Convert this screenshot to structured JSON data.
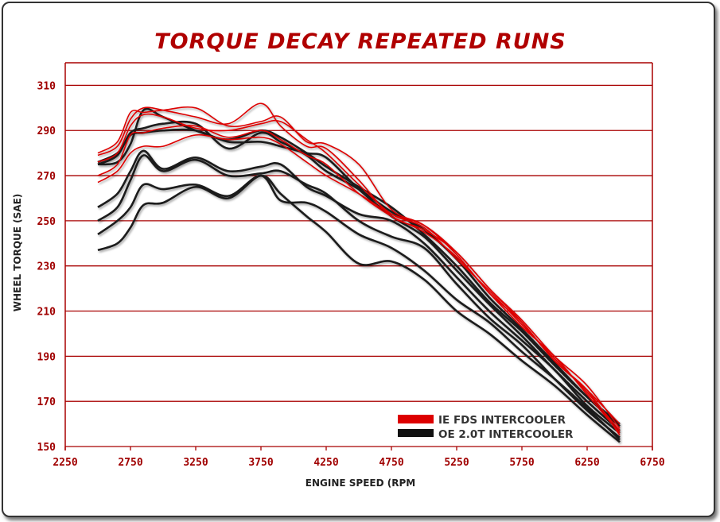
{
  "chart_data": {
    "type": "line",
    "title": "TORQUE DECAY REPEATED RUNS",
    "xlabel": "ENGINE SPEED (RPM",
    "ylabel": "WHEEL TORQUE (SAE)",
    "xlim": [
      2250,
      6750
    ],
    "ylim": [
      150,
      320
    ],
    "xticks": [
      2250,
      2750,
      3250,
      3750,
      4250,
      4750,
      5250,
      5750,
      6250,
      6750
    ],
    "yticks": [
      150,
      170,
      190,
      210,
      230,
      250,
      270,
      290,
      310
    ],
    "grid": "horizontal",
    "legend_position": "bottom-right",
    "legend": [
      {
        "label": "IE FDS INTERCOOLER",
        "color": "#dd0000"
      },
      {
        "label": "OE 2.0T INTERCOOLER",
        "color": "#111111"
      }
    ],
    "x": [
      2500,
      2650,
      2750,
      2850,
      3000,
      3250,
      3500,
      3750,
      3900,
      4100,
      4250,
      4500,
      4750,
      5000,
      5250,
      5500,
      5750,
      6000,
      6250,
      6500
    ],
    "series": [
      {
        "name": "IE FDS INTERCOOLER run 1",
        "group": 0,
        "values": [
          280,
          285,
          298,
          298,
          299,
          300,
          292,
          294,
          296,
          285,
          284,
          275,
          255,
          248,
          235,
          218,
          205,
          188,
          175,
          160
        ]
      },
      {
        "name": "IE FDS INTERCOOLER run 2",
        "group": 0,
        "values": [
          279,
          283,
          295,
          300,
          299,
          296,
          293,
          302,
          292,
          283,
          282,
          268,
          252,
          246,
          236,
          220,
          206,
          190,
          177,
          158
        ]
      },
      {
        "name": "IE FDS INTERCOOLER run 3",
        "group": 0,
        "values": [
          276,
          280,
          292,
          297,
          296,
          291,
          290,
          293,
          294,
          286,
          280,
          266,
          253,
          247,
          233,
          219,
          204,
          189,
          174,
          157
        ]
      },
      {
        "name": "IE FDS INTERCOOLER run 4",
        "group": 0,
        "values": [
          270,
          275,
          288,
          289,
          291,
          292,
          287,
          290,
          286,
          279,
          275,
          262,
          252,
          245,
          234,
          218,
          203,
          190,
          173,
          156
        ]
      },
      {
        "name": "IE FDS INTERCOOLER run 5",
        "group": 0,
        "values": [
          267,
          272,
          280,
          283,
          283,
          288,
          286,
          287,
          284,
          276,
          270,
          262,
          253,
          248,
          236,
          220,
          205,
          188,
          175,
          155
        ]
      },
      {
        "name": "OE 2.0T INTERCOOLER run 1",
        "group": 1,
        "values": [
          275,
          276,
          284,
          299,
          296,
          290,
          286,
          290,
          287,
          280,
          274,
          265,
          256,
          244,
          230,
          214,
          201,
          186,
          172,
          160
        ]
      },
      {
        "name": "OE 2.0T INTERCOOLER run 2",
        "group": 1,
        "values": [
          275,
          279,
          289,
          291,
          293,
          293,
          282,
          289,
          285,
          279,
          272,
          264,
          254,
          246,
          233,
          216,
          202,
          187,
          172,
          159
        ]
      },
      {
        "name": "OE 2.0T INTERCOOLER run 3",
        "group": 1,
        "values": [
          276,
          280,
          288,
          289,
          290,
          290,
          285,
          285,
          283,
          280,
          278,
          264,
          252,
          243,
          228,
          213,
          199,
          184,
          170,
          157
        ]
      },
      {
        "name": "OE 2.0T INTERCOOLER run 4",
        "group": 1,
        "values": [
          256,
          262,
          272,
          281,
          273,
          278,
          272,
          274,
          275,
          265,
          261,
          253,
          250,
          240,
          225,
          210,
          197,
          184,
          168,
          156
        ]
      },
      {
        "name": "OE 2.0T INTERCOOLER run 5",
        "group": 1,
        "values": [
          250,
          256,
          268,
          279,
          272,
          277,
          270,
          271,
          272,
          266,
          262,
          250,
          243,
          238,
          222,
          207,
          195,
          180,
          166,
          154
        ]
      },
      {
        "name": "OE 2.0T INTERCOOLER run 6",
        "group": 1,
        "values": [
          244,
          250,
          256,
          266,
          264,
          266,
          261,
          270,
          259,
          258,
          254,
          244,
          238,
          228,
          215,
          205,
          192,
          180,
          167,
          153
        ]
      },
      {
        "name": "OE 2.0T INTERCOOLER run 7",
        "group": 1,
        "values": [
          237,
          240,
          247,
          257,
          258,
          265,
          260,
          270,
          262,
          252,
          245,
          231,
          232,
          224,
          210,
          200,
          188,
          177,
          164,
          152
        ]
      }
    ]
  }
}
